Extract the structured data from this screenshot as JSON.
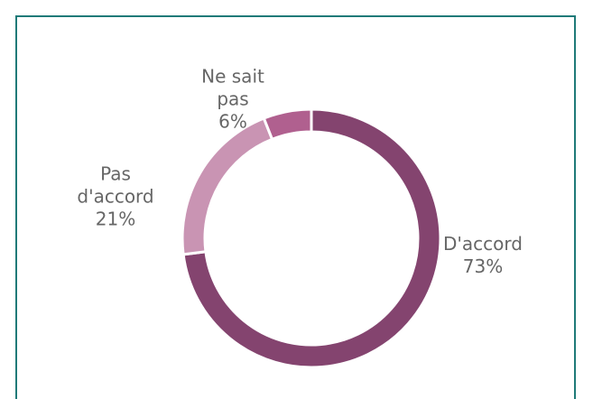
{
  "chart_data": {
    "type": "donut",
    "categories": [
      "D'accord",
      "Pas d'accord",
      "Ne sait pas"
    ],
    "values": [
      73,
      21,
      6
    ],
    "value_labels": [
      "73%",
      "21%",
      "6%"
    ],
    "colors": [
      "#84446f",
      "#c994b3",
      "#b0608f"
    ]
  }
}
